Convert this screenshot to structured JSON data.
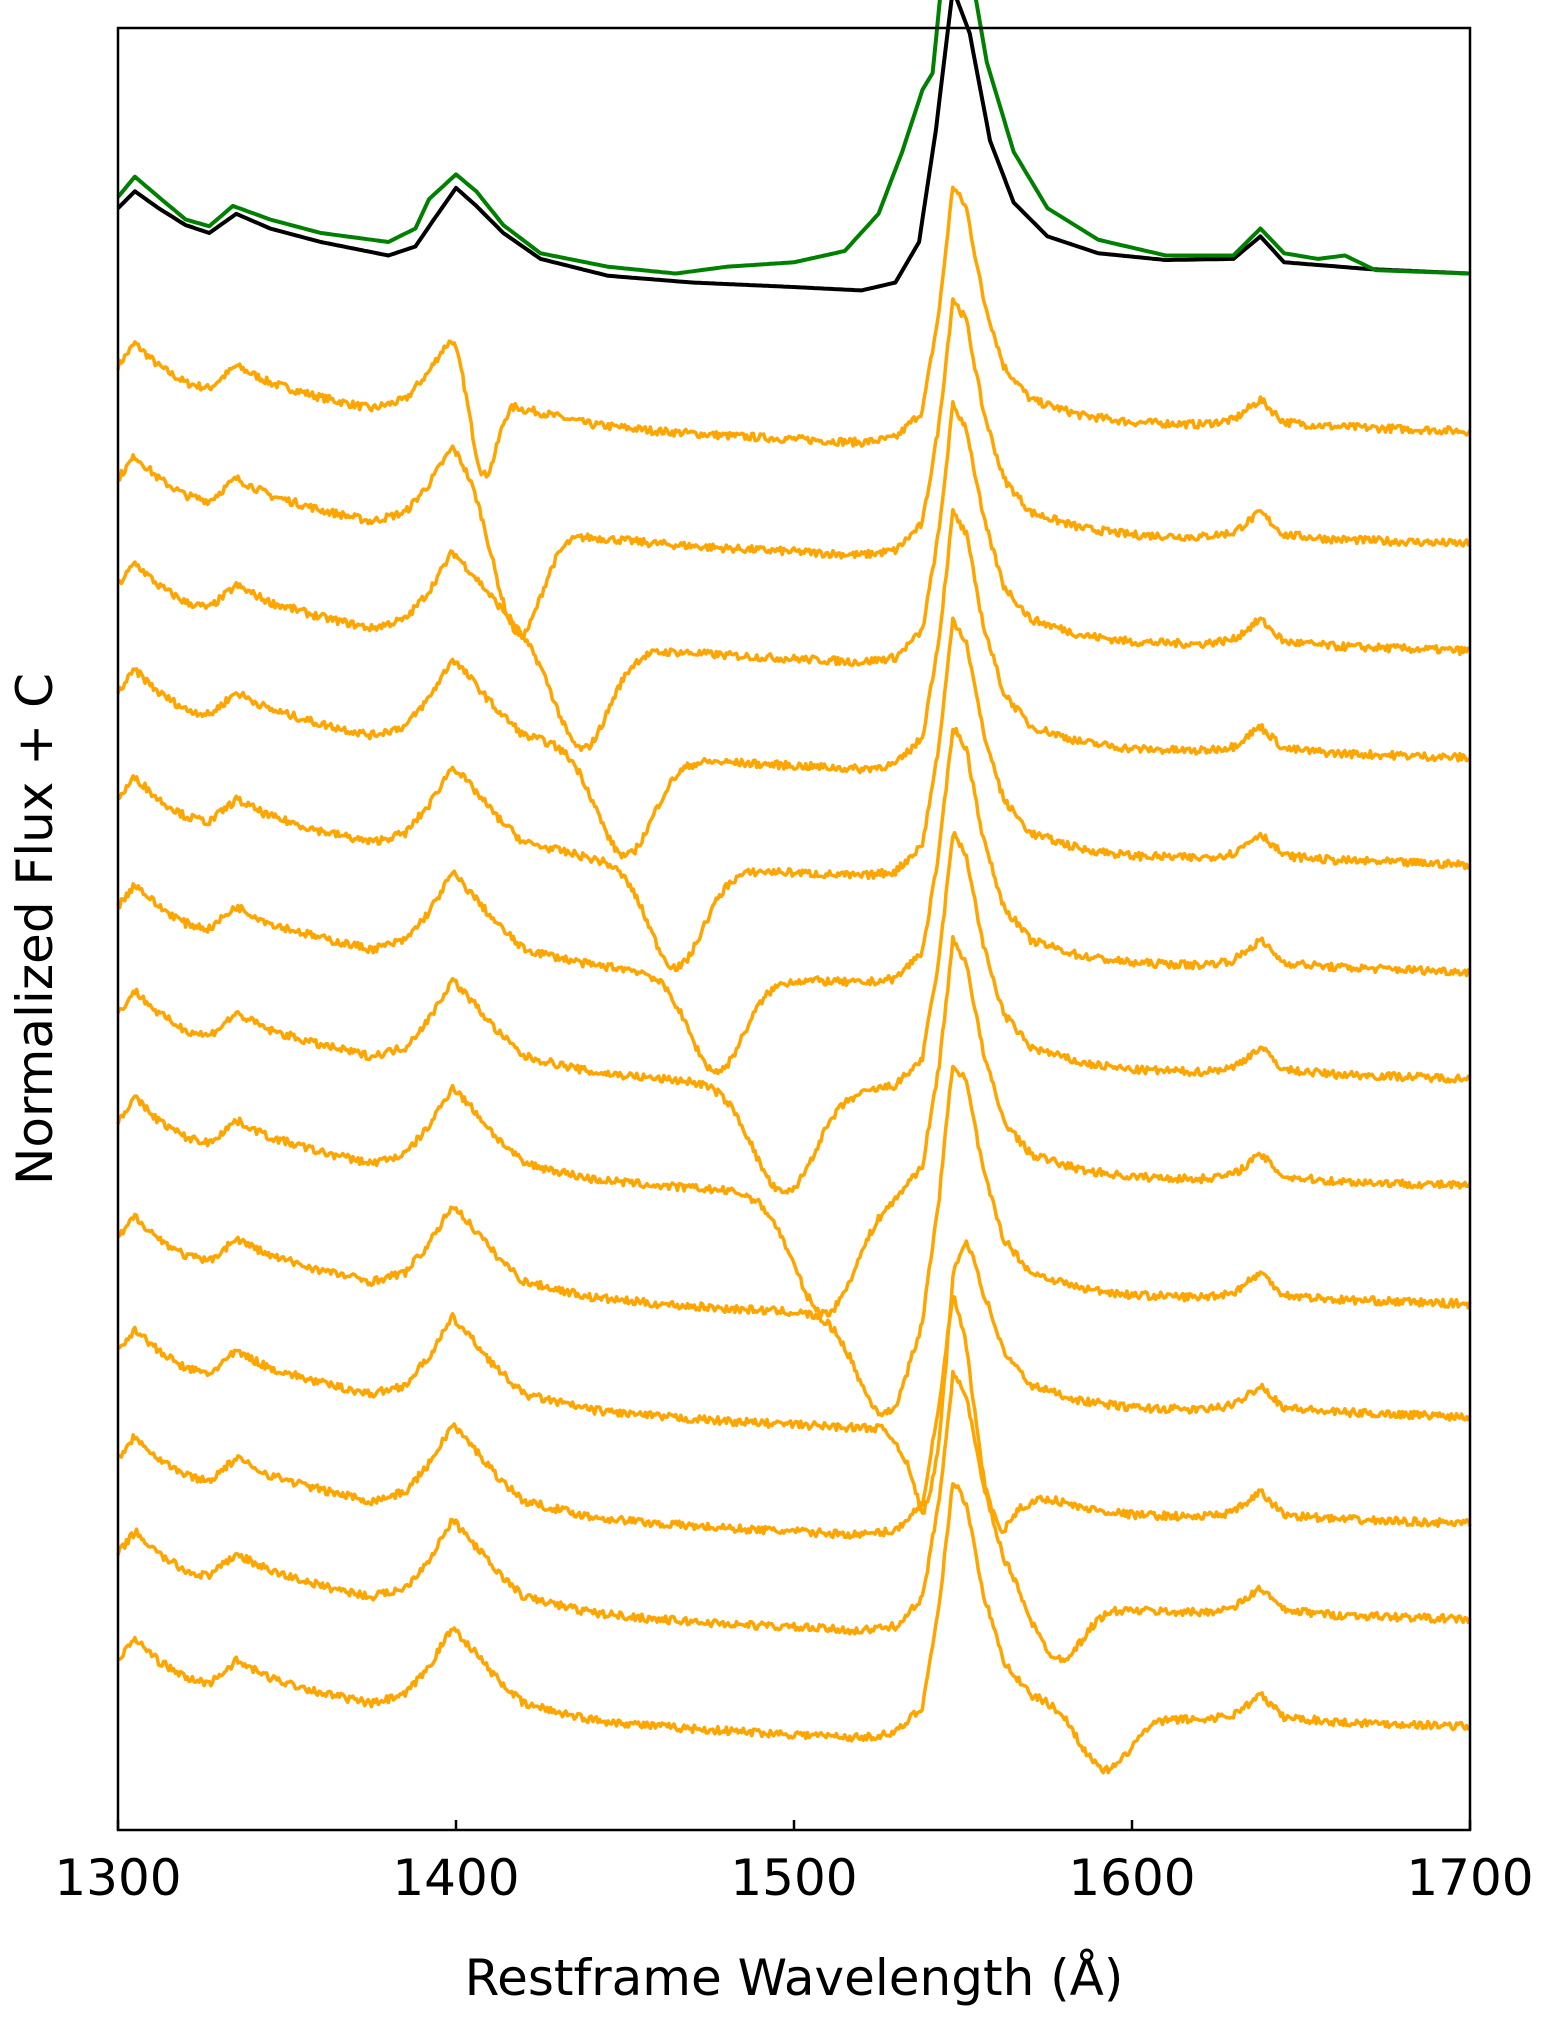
{
  "chart_data": {
    "type": "line",
    "title": "",
    "xlabel": "Restframe Wavelength (Å)",
    "ylabel": "Normalized Flux + C",
    "xlim": [
      1300,
      1700
    ],
    "xticks": [
      1300,
      1400,
      1500,
      1600,
      1700
    ],
    "ylim": [
      -8.8,
      7.2
    ],
    "y_ticks_shown": false,
    "grid": false,
    "legend": "none",
    "continuum": [
      [
        1300,
        1.0
      ],
      [
        1305,
        1.2
      ],
      [
        1312,
        1.0
      ],
      [
        1320,
        0.85
      ],
      [
        1327,
        0.8
      ],
      [
        1335,
        1.0
      ],
      [
        1345,
        0.85
      ],
      [
        1360,
        0.72
      ],
      [
        1375,
        0.62
      ],
      [
        1385,
        0.7
      ],
      [
        1392,
        0.95
      ],
      [
        1399,
        1.3
      ],
      [
        1405,
        1.1
      ],
      [
        1412,
        0.85
      ],
      [
        1420,
        0.62
      ],
      [
        1440,
        0.48
      ],
      [
        1460,
        0.42
      ],
      [
        1480,
        0.38
      ],
      [
        1500,
        0.35
      ],
      [
        1520,
        0.32
      ],
      [
        1530,
        0.36
      ],
      [
        1538,
        0.6
      ],
      [
        1543,
        1.5
      ],
      [
        1547,
        2.6
      ],
      [
        1551,
        2.4
      ],
      [
        1556,
        1.6
      ],
      [
        1562,
        1.0
      ],
      [
        1570,
        0.7
      ],
      [
        1585,
        0.56
      ],
      [
        1600,
        0.5
      ],
      [
        1620,
        0.48
      ],
      [
        1630,
        0.52
      ],
      [
        1638,
        0.7
      ],
      [
        1645,
        0.5
      ],
      [
        1660,
        0.46
      ],
      [
        1680,
        0.44
      ],
      [
        1700,
        0.42
      ]
    ],
    "series": [
      {
        "color": "#000000",
        "offset": 4.6,
        "points": [
          [
            1300,
            1.0
          ],
          [
            1305,
            1.15
          ],
          [
            1312,
            1.0
          ],
          [
            1320,
            0.85
          ],
          [
            1327,
            0.78
          ],
          [
            1335,
            0.95
          ],
          [
            1345,
            0.82
          ],
          [
            1360,
            0.7
          ],
          [
            1380,
            0.58
          ],
          [
            1388,
            0.66
          ],
          [
            1393,
            0.88
          ],
          [
            1400,
            1.18
          ],
          [
            1406,
            1.02
          ],
          [
            1414,
            0.78
          ],
          [
            1425,
            0.55
          ],
          [
            1445,
            0.4
          ],
          [
            1470,
            0.34
          ],
          [
            1500,
            0.3
          ],
          [
            1520,
            0.27
          ],
          [
            1530,
            0.34
          ],
          [
            1537,
            0.7
          ],
          [
            1542,
            1.7
          ],
          [
            1547,
            2.95
          ],
          [
            1552,
            2.55
          ],
          [
            1558,
            1.6
          ],
          [
            1565,
            1.05
          ],
          [
            1575,
            0.75
          ],
          [
            1590,
            0.6
          ],
          [
            1610,
            0.54
          ],
          [
            1630,
            0.55
          ],
          [
            1638,
            0.75
          ],
          [
            1645,
            0.52
          ],
          [
            1670,
            0.46
          ],
          [
            1700,
            0.42
          ]
        ]
      },
      {
        "color": "#008000",
        "offset": 4.6,
        "points": [
          [
            1300,
            1.1
          ],
          [
            1305,
            1.28
          ],
          [
            1312,
            1.1
          ],
          [
            1320,
            0.9
          ],
          [
            1327,
            0.84
          ],
          [
            1334,
            1.02
          ],
          [
            1345,
            0.9
          ],
          [
            1360,
            0.78
          ],
          [
            1380,
            0.7
          ],
          [
            1388,
            0.82
          ],
          [
            1392,
            1.08
          ],
          [
            1400,
            1.3
          ],
          [
            1406,
            1.15
          ],
          [
            1414,
            0.85
          ],
          [
            1425,
            0.6
          ],
          [
            1445,
            0.48
          ],
          [
            1465,
            0.42
          ],
          [
            1480,
            0.48
          ],
          [
            1500,
            0.52
          ],
          [
            1515,
            0.62
          ],
          [
            1525,
            0.95
          ],
          [
            1532,
            1.5
          ],
          [
            1538,
            2.05
          ],
          [
            1541,
            2.2
          ],
          [
            1544,
            3.1
          ],
          [
            1547,
            3.75
          ],
          [
            1551,
            3.35
          ],
          [
            1557,
            2.3
          ],
          [
            1565,
            1.5
          ],
          [
            1575,
            1.0
          ],
          [
            1590,
            0.72
          ],
          [
            1610,
            0.58
          ],
          [
            1630,
            0.58
          ],
          [
            1638,
            0.82
          ],
          [
            1645,
            0.6
          ],
          [
            1655,
            0.55
          ],
          [
            1663,
            0.58
          ],
          [
            1672,
            0.45
          ],
          [
            1700,
            0.42
          ]
        ]
      },
      {
        "color": "#FFA500",
        "offset": 3.2,
        "absorption": {
          "center": 1408,
          "depth": 0.95,
          "width": 4
        }
      },
      {
        "color": "#FFA500",
        "offset": 2.2,
        "absorption": {
          "center": 1418,
          "depth": 1.05,
          "width": 7
        }
      },
      {
        "color": "#FFA500",
        "offset": 1.25,
        "absorption": {
          "center": 1437,
          "depth": 0.95,
          "width": 8
        }
      },
      {
        "color": "#FFA500",
        "offset": 0.3,
        "absorption": {
          "center": 1450,
          "depth": 0.9,
          "width": 8
        }
      },
      {
        "color": "#FFA500",
        "offset": -0.65,
        "absorption": {
          "center": 1465,
          "depth": 0.9,
          "width": 8
        }
      },
      {
        "color": "#FFA500",
        "offset": -1.6,
        "absorption": {
          "center": 1477,
          "depth": 0.85,
          "width": 8
        }
      },
      {
        "color": "#FFA500",
        "offset": -2.55,
        "absorption": {
          "center": 1497,
          "depth": 0.95,
          "width": 9
        }
      },
      {
        "color": "#FFA500",
        "offset": -3.5,
        "absorption": {
          "center": 1509,
          "depth": 1.05,
          "width": 9
        }
      },
      {
        "color": "#FFA500",
        "offset": -4.55,
        "absorption": {
          "center": 1527,
          "depth": 0.9,
          "width": 8
        }
      },
      {
        "color": "#FFA500",
        "offset": -5.55,
        "absorption": {
          "center": 1542,
          "depth": 1.3,
          "width": 6
        }
      },
      {
        "color": "#FFA500",
        "offset": -6.5,
        "absorption": {
          "center": 1558,
          "depth": 0.8,
          "width": 6
        }
      },
      {
        "color": "#FFA500",
        "offset": -7.35,
        "absorption": {
          "center": 1578,
          "depth": 0.55,
          "width": 7
        }
      },
      {
        "color": "#FFA500",
        "offset": -8.3,
        "absorption": {
          "center": 1592,
          "depth": 0.5,
          "width": 7
        }
      }
    ]
  }
}
